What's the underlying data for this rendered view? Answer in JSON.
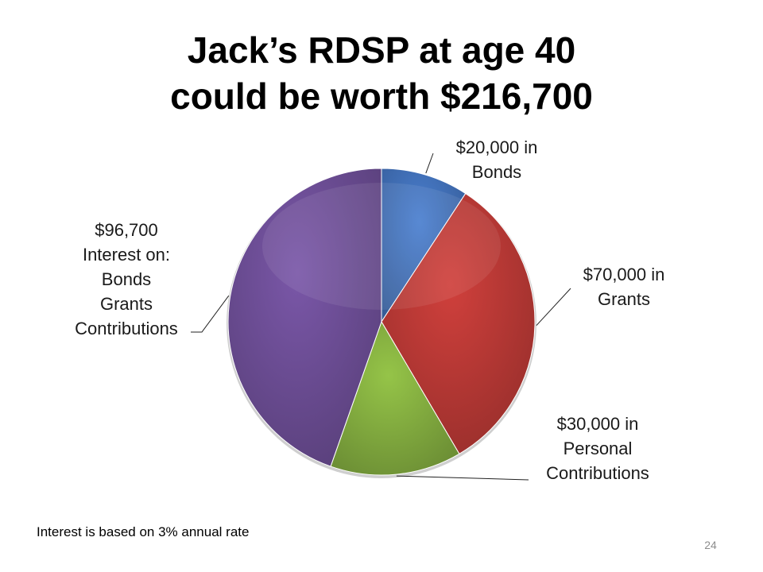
{
  "slide": {
    "title_line1": "Jack’s RDSP at age 40",
    "title_line2": "could be worth $216,700",
    "footnote": "Interest is based on 3% annual rate",
    "page_number": "24"
  },
  "chart_data": {
    "type": "pie",
    "title": "Jack’s RDSP at age 40 could be worth $216,700",
    "total": 216700,
    "slices": [
      {
        "name": "Bonds",
        "value": 20000,
        "color": "#4a7fd0",
        "label_lines": [
          "$20,000 in",
          "Bonds"
        ]
      },
      {
        "name": "Grants",
        "value": 70000,
        "color": "#d0403c",
        "label_lines": [
          "$70,000 in",
          "Grants"
        ]
      },
      {
        "name": "Personal Contributions",
        "value": 30000,
        "color": "#95c448",
        "label_lines": [
          "$30,000 in",
          "Personal",
          "Contributions"
        ]
      },
      {
        "name": "Interest",
        "value": 96700,
        "color": "#7a57a8",
        "label_lines": [
          "$96,700",
          "Interest on:",
          "Bonds",
          "Grants",
          "Contributions"
        ]
      }
    ]
  }
}
